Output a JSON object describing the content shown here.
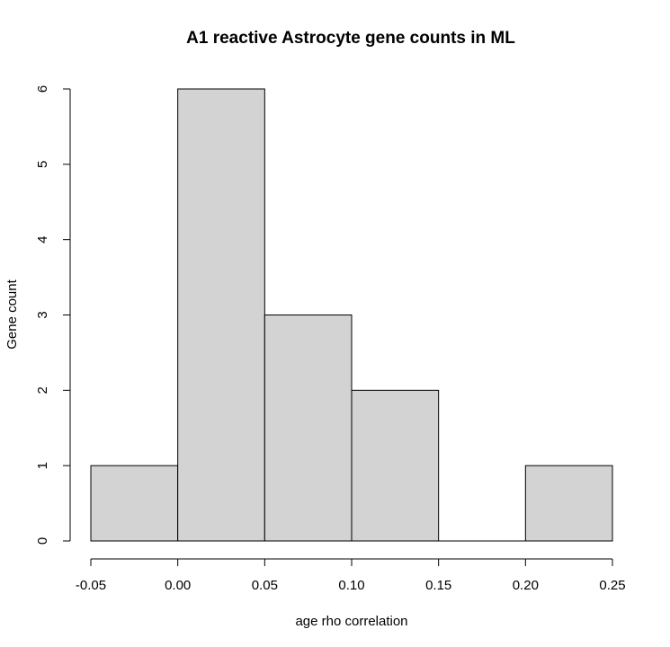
{
  "chart_data": {
    "type": "bar",
    "subtype": "histogram",
    "title": "A1 reactive Astrocyte gene counts in ML",
    "xlabel": "age rho correlation",
    "ylabel": "Gene count",
    "bins": [
      {
        "x0": -0.05,
        "x1": 0.0,
        "count": 1
      },
      {
        "x0": 0.0,
        "x1": 0.05,
        "count": 6
      },
      {
        "x0": 0.05,
        "x1": 0.1,
        "count": 3
      },
      {
        "x0": 0.1,
        "x1": 0.15,
        "count": 2
      },
      {
        "x0": 0.15,
        "x1": 0.2,
        "count": 0
      },
      {
        "x0": 0.2,
        "x1": 0.25,
        "count": 1
      }
    ],
    "xlim": [
      -0.05,
      0.25
    ],
    "ylim": [
      0,
      6
    ],
    "x_ticks": [
      -0.05,
      0.0,
      0.05,
      0.1,
      0.15,
      0.2,
      0.25
    ],
    "x_tick_labels": [
      "-0.05",
      "0.00",
      "0.05",
      "0.10",
      "0.15",
      "0.20",
      "0.25"
    ],
    "y_ticks": [
      0,
      1,
      2,
      3,
      4,
      5,
      6
    ],
    "y_tick_labels": [
      "0",
      "1",
      "2",
      "3",
      "4",
      "5",
      "6"
    ],
    "bar_color": "#d3d3d3",
    "edge_color": "#000000",
    "grid": false,
    "legend": "none"
  }
}
